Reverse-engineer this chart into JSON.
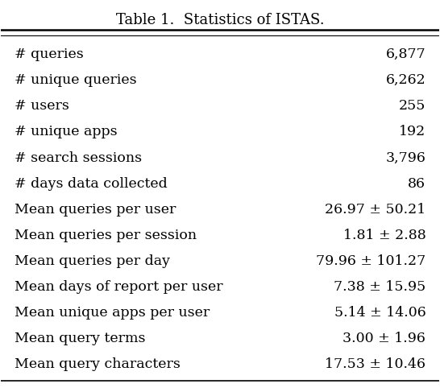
{
  "title": "Table 1.  Statistics of ISTAS.",
  "rows": [
    [
      "# queries",
      "6,877"
    ],
    [
      "# unique queries",
      "6,262"
    ],
    [
      "# users",
      "255"
    ],
    [
      "# unique apps",
      "192"
    ],
    [
      "# search sessions",
      "3,796"
    ],
    [
      "# days data collected",
      "86"
    ],
    [
      "Mean queries per user",
      "26.97 ± 50.21"
    ],
    [
      "Mean queries per session",
      "1.81 ± 2.88"
    ],
    [
      "Mean queries per day",
      "79.96 ± 101.27"
    ],
    [
      "Mean days of report per user",
      "7.38 ± 15.95"
    ],
    [
      "Mean unique apps per user",
      "5.14 ± 14.06"
    ],
    [
      "Mean query terms",
      "3.00 ± 1.96"
    ],
    [
      "Mean query characters",
      "17.53 ± 10.46"
    ]
  ],
  "bg_color": "#ffffff",
  "text_color": "#000000",
  "title_fontsize": 13,
  "body_fontsize": 12.5,
  "fig_width": 5.46,
  "fig_height": 4.82
}
